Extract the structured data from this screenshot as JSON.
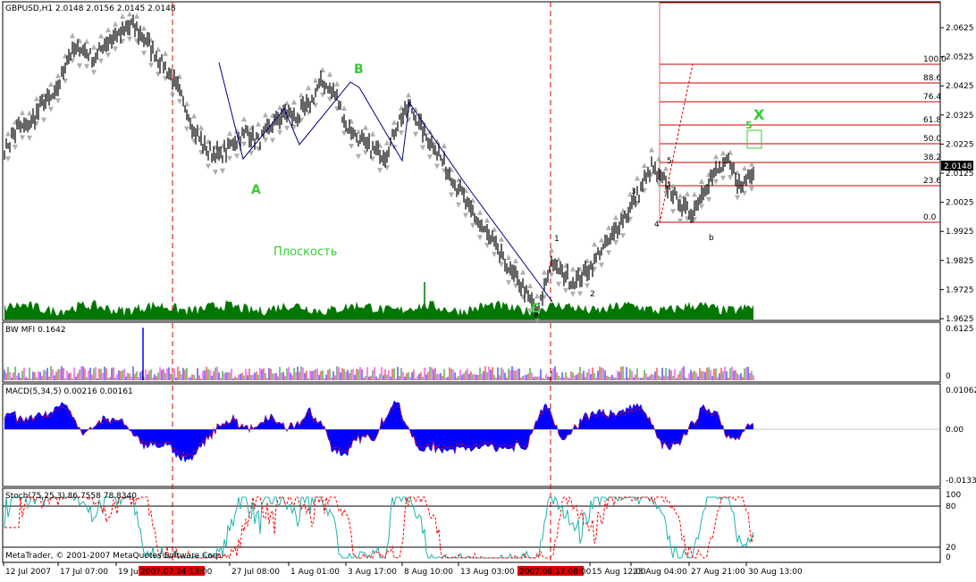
{
  "window": {
    "main_title": "GBPUSD,H1  2.0148 2.0156 2.0145 2.0148",
    "mfi_title": "BW MFI 0.1642",
    "macd_title": "MACD(5,34,5) 0.00216 0.00161",
    "stoch_title": "Stoch(75,25,3) 86.7558 78.8340",
    "copyright": "MetaTrader, © 2001-2007 MetaQuotes Software Corp.",
    "current_price": "2.0148"
  },
  "colors": {
    "price_bar": "#000000",
    "fractal": "#9a9a9a",
    "volume": "#007700",
    "macd_hist": "#0000ff",
    "signal": "#ff0000",
    "stoch_main": "#20b2aa",
    "fib_line": "#cc0000",
    "wave_green": "#33cc33",
    "wave_red": "#cc2222",
    "vline": "#dd0000"
  },
  "time_axis": {
    "labels": [
      "12 Jul 2007",
      "17 Jul 07:00",
      "19 Jul",
      "27 Jul 08:00",
      "1 Aug 01:00",
      "3 Aug 17:00",
      "8 Aug 10:00",
      "13 Aug 03:00",
      "15 Aug 12:00",
      "23 Aug 04:00",
      "27 Aug 21:00",
      "30 Aug 13:00"
    ],
    "highlight": [
      "2007.07.24 13:00",
      "2007.08.17 08:00"
    ]
  },
  "price_axis": [
    "2.0625",
    "2.0525",
    "2.0425",
    "2.0325",
    "2.0225",
    "2.0125",
    "2.0025",
    "1.9925",
    "1.9825",
    "1.9725",
    "1.9625"
  ],
  "mfi_axis": [
    "0.6125",
    "0"
  ],
  "macd_axis": [
    "0.01062",
    "0.00",
    "-0.01334"
  ],
  "stoch_axis": [
    "100",
    "80",
    "20",
    "0"
  ],
  "fibonacci": [
    "100.0",
    "88.6",
    "76.4",
    "61.8",
    "50.0",
    "38.2",
    "23.6",
    "0.0"
  ],
  "annotations": {
    "flat_label": "Плоскость",
    "waves_green": [
      "A",
      "B",
      "A",
      "C",
      "X",
      "5"
    ],
    "waves_red": [
      "1",
      "2",
      "3",
      "4",
      "5",
      "b"
    ]
  },
  "chart_data": {
    "type": "line",
    "series": [
      {
        "values": [
          2.022,
          2.029,
          2.031,
          2.038,
          2.041,
          2.055,
          2.058,
          2.054,
          2.06,
          2.062,
          2.066,
          2.061,
          2.055,
          2.049,
          2.04,
          2.028,
          2.021,
          2.02,
          2.024,
          2.028,
          2.025,
          2.03,
          2.035,
          2.033,
          2.038,
          2.046,
          2.042,
          2.03,
          2.025,
          2.022,
          2.02,
          2.032,
          2.037,
          2.028,
          2.022,
          2.014,
          2.006,
          1.998,
          1.992,
          1.985,
          1.978,
          1.972,
          1.964,
          1.982,
          1.978,
          1.975,
          1.98,
          1.986,
          1.992,
          1.999,
          2.007,
          2.016,
          2.01,
          2.004,
          1.999,
          2.007,
          2.014,
          2.017,
          2.009,
          2.015
        ]
      }
    ],
    "xlabel": "",
    "ylabel": "",
    "ylim": [
      1.9625,
      2.0685
    ]
  }
}
